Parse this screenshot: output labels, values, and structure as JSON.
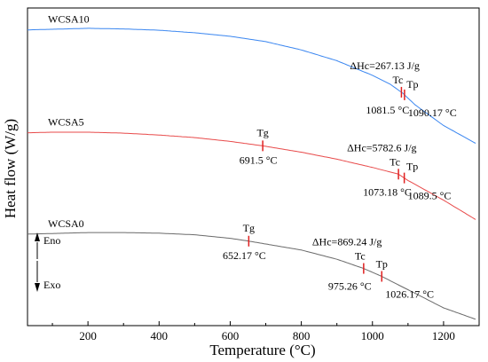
{
  "chart_data": {
    "type": "line",
    "xlabel": "Temperature (°C)",
    "ylabel": "Heat flow (W/g)",
    "xlim": [
      30,
      1300
    ],
    "xticks": [
      200,
      400,
      600,
      800,
      1000,
      1200
    ],
    "xtick_labels": [
      "200",
      "400",
      "600",
      "800",
      "1000",
      "1200"
    ],
    "ylim": [
      0,
      100
    ],
    "grid": false,
    "series": [
      {
        "name": "WCSA10",
        "color": "#3a86f0",
        "x": [
          30,
          100,
          200,
          300,
          400,
          500,
          600,
          700,
          800,
          900,
          1000,
          1050,
          1085,
          1120,
          1200,
          1290
        ],
        "y": [
          93.1,
          93.3,
          93.6,
          93.4,
          93.0,
          92.2,
          91.1,
          89.4,
          86.8,
          83.4,
          78.8,
          76.0,
          73.2,
          69.5,
          63.0,
          57.4
        ]
      },
      {
        "name": "WCSA5",
        "color": "#e84a4a",
        "x": [
          30,
          100,
          200,
          300,
          400,
          500,
          600,
          691.5,
          800,
          900,
          1000,
          1073,
          1100,
          1200,
          1290
        ],
        "y": [
          60.7,
          60.9,
          60.9,
          60.6,
          60.0,
          59.2,
          58.0,
          56.6,
          54.6,
          52.4,
          49.8,
          47.7,
          45.7,
          39.5,
          33.4
        ]
      },
      {
        "name": "WCSA0",
        "color": "#6a6a6a",
        "x": [
          30,
          100,
          200,
          300,
          400,
          500,
          600,
          652.17,
          700,
          800,
          900,
          975.26,
          1026.17,
          1100,
          1200,
          1290
        ],
        "y": [
          28.8,
          29.0,
          29.3,
          29.3,
          29.1,
          28.6,
          27.5,
          26.6,
          25.7,
          23.8,
          20.9,
          18.0,
          15.5,
          11.3,
          5.6,
          2.0
        ]
      }
    ],
    "annotations": [
      {
        "series": 0,
        "dh": "ΔHc=267.13 J/g",
        "tc_label": "Tc",
        "tp_label": "Tp",
        "tc": 1081.5,
        "tp": 1090.17,
        "tc_text": "1081.5 °C",
        "tp_text": "1090.17 °C"
      },
      {
        "series": 1,
        "tg_label": "Tg",
        "tg": 691.5,
        "tg_text": "691.5 °C",
        "dh": "ΔHc=5782.6 J/g",
        "tc_label": "Tc",
        "tp_label": "Tp",
        "tc": 1073.18,
        "tp": 1089.5,
        "tc_text": "1073.18 °C",
        "tp_text": "1089.5 °C"
      },
      {
        "series": 2,
        "tg_label": "Tg",
        "tg": 652.17,
        "tg_text": "652.17 °C",
        "dh": "ΔHc=869.24 J/g",
        "tc_label": "Tc",
        "tp_label": "Tp",
        "tc": 975.26,
        "tp": 1026.17,
        "tc_text": "975.26 °C",
        "tp_text": "1026.17 °C"
      }
    ],
    "direction_labels": {
      "up": "Eno",
      "down": "Exo"
    }
  }
}
